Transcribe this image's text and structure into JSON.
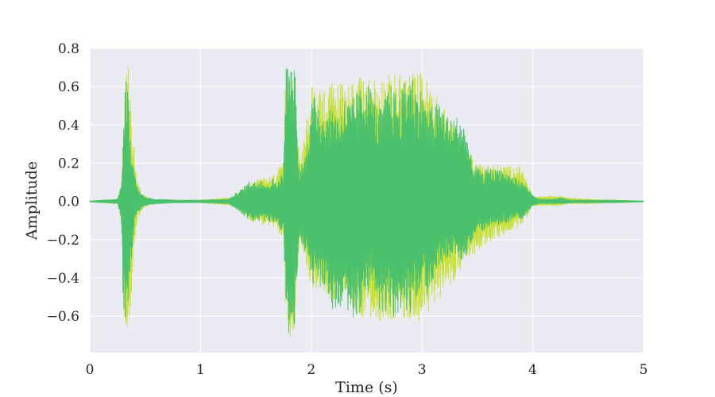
{
  "chart_data": {
    "type": "line",
    "title": "",
    "xlabel": "Time (s)",
    "ylabel": "Amplitude",
    "xlim": [
      0,
      5
    ],
    "ylim": [
      -0.79,
      0.8
    ],
    "xticks": [
      0,
      1,
      2,
      3,
      4,
      5
    ],
    "xtick_labels": [
      "0",
      "1",
      "2",
      "3",
      "4",
      "5"
    ],
    "yticks": [
      0.8,
      0.6,
      0.4,
      0.2,
      0.0,
      -0.2,
      -0.4,
      -0.6
    ],
    "ytick_labels": [
      "0.8",
      "0.6",
      "0.4",
      "0.2",
      "0.0",
      "−0.2",
      "−0.4",
      "−0.6"
    ],
    "grid": true,
    "background_color": "#eaeaf2",
    "series": [
      {
        "color": "#c8e03a",
        "x": [
          0.0,
          0.25,
          0.29,
          0.31,
          0.33,
          0.35,
          0.37,
          0.39,
          0.42,
          0.46,
          0.52,
          0.6,
          1.0,
          1.3,
          1.45,
          1.55,
          1.65,
          1.75,
          1.77,
          1.79,
          1.82,
          1.85,
          1.88,
          1.9,
          2.0,
          2.5,
          3.0,
          3.5,
          3.9,
          4.0,
          4.25,
          4.3,
          4.5,
          5.0
        ],
        "envelope_upper": [
          0.0,
          0.01,
          0.12,
          0.6,
          0.7,
          0.72,
          0.5,
          0.35,
          0.15,
          0.05,
          0.02,
          0.005,
          0.005,
          0.02,
          0.1,
          0.12,
          0.13,
          0.2,
          0.72,
          0.71,
          0.7,
          0.69,
          0.3,
          0.2,
          0.6,
          0.65,
          0.68,
          0.2,
          0.18,
          0.02,
          0.03,
          0.02,
          0.01,
          0.0
        ],
        "envelope_lower": [
          0.0,
          -0.01,
          -0.12,
          -0.6,
          -0.72,
          -0.7,
          -0.55,
          -0.3,
          -0.12,
          -0.05,
          -0.02,
          -0.005,
          -0.005,
          -0.02,
          -0.1,
          -0.12,
          -0.13,
          -0.2,
          -0.7,
          -0.72,
          -0.7,
          -0.7,
          -0.3,
          -0.2,
          -0.45,
          -0.62,
          -0.62,
          -0.25,
          -0.12,
          -0.02,
          -0.02,
          -0.01,
          -0.01,
          0.0
        ]
      },
      {
        "color": "#4bc16e",
        "x": [
          0.0,
          0.25,
          0.28,
          0.3,
          0.32,
          0.34,
          0.36,
          0.38,
          0.4,
          0.44,
          0.5,
          0.6,
          0.8,
          1.0,
          1.25,
          1.3,
          1.4,
          1.45,
          1.5,
          1.55,
          1.6,
          1.65,
          1.7,
          1.75,
          1.77,
          1.78,
          1.8,
          1.83,
          1.86,
          1.88,
          1.9,
          1.95,
          2.0,
          2.05,
          2.1,
          2.15,
          2.2,
          2.25,
          2.3,
          2.35,
          2.4,
          2.45,
          2.5,
          2.55,
          2.6,
          2.65,
          2.7,
          2.75,
          2.8,
          2.85,
          2.9,
          2.95,
          3.0,
          3.05,
          3.1,
          3.15,
          3.2,
          3.25,
          3.3,
          3.35,
          3.4,
          3.45,
          3.5,
          3.55,
          3.6,
          3.65,
          3.7,
          3.75,
          3.8,
          3.85,
          3.9,
          3.95,
          4.0,
          4.05,
          4.2,
          4.25,
          4.3,
          4.35,
          4.5,
          4.7,
          5.0
        ],
        "envelope_upper": [
          0.0,
          0.01,
          0.08,
          0.3,
          0.68,
          0.66,
          0.42,
          0.28,
          0.14,
          0.06,
          0.02,
          0.01,
          0.005,
          0.005,
          0.01,
          0.03,
          0.08,
          0.11,
          0.1,
          0.12,
          0.08,
          0.12,
          0.1,
          0.16,
          0.72,
          0.73,
          0.7,
          0.69,
          0.7,
          0.2,
          0.18,
          0.25,
          0.52,
          0.58,
          0.48,
          0.45,
          0.52,
          0.45,
          0.54,
          0.52,
          0.56,
          0.6,
          0.64,
          0.58,
          0.48,
          0.5,
          0.62,
          0.58,
          0.55,
          0.64,
          0.68,
          0.6,
          0.58,
          0.48,
          0.5,
          0.52,
          0.5,
          0.42,
          0.45,
          0.44,
          0.38,
          0.2,
          0.18,
          0.14,
          0.18,
          0.16,
          0.18,
          0.15,
          0.14,
          0.12,
          0.1,
          0.08,
          0.03,
          0.01,
          0.01,
          0.02,
          0.01,
          0.005,
          0.005,
          0.005,
          0.0
        ],
        "envelope_lower": [
          0.0,
          -0.01,
          -0.08,
          -0.56,
          -0.62,
          -0.6,
          -0.4,
          -0.26,
          -0.12,
          -0.05,
          -0.02,
          -0.01,
          -0.005,
          -0.005,
          -0.01,
          -0.03,
          -0.08,
          -0.1,
          -0.1,
          -0.1,
          -0.1,
          -0.11,
          -0.14,
          -0.18,
          -0.7,
          -0.72,
          -0.72,
          -0.7,
          -0.6,
          -0.22,
          -0.2,
          -0.28,
          -0.44,
          -0.46,
          -0.44,
          -0.52,
          -0.58,
          -0.6,
          -0.54,
          -0.6,
          -0.62,
          -0.58,
          -0.48,
          -0.44,
          -0.56,
          -0.58,
          -0.58,
          -0.62,
          -0.66,
          -0.56,
          -0.6,
          -0.5,
          -0.45,
          -0.5,
          -0.42,
          -0.34,
          -0.32,
          -0.3,
          -0.28,
          -0.34,
          -0.28,
          -0.2,
          -0.14,
          -0.16,
          -0.14,
          -0.12,
          -0.12,
          -0.11,
          -0.1,
          -0.08,
          -0.09,
          -0.06,
          -0.02,
          -0.01,
          -0.01,
          -0.01,
          -0.01,
          -0.005,
          -0.005,
          -0.005,
          0.0
        ]
      }
    ]
  }
}
